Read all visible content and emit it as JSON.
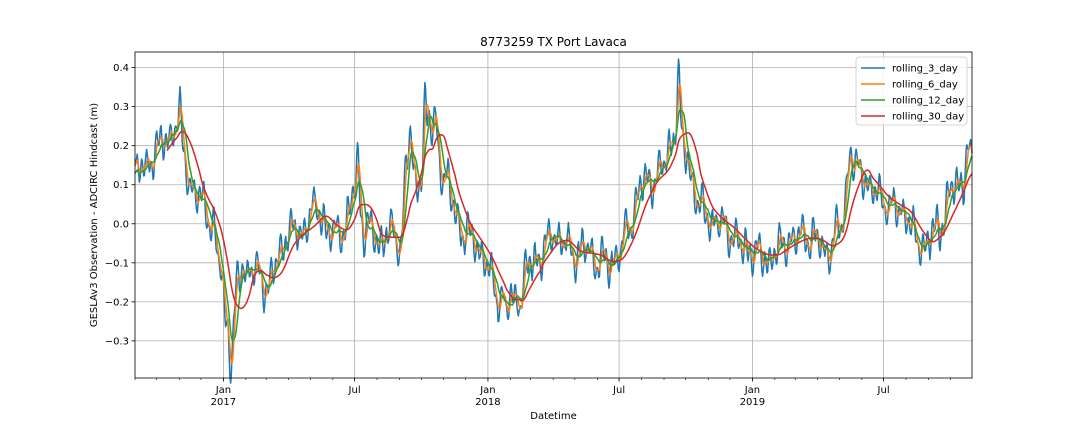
{
  "chart_data": {
    "type": "line",
    "title": "8773259 TX Port Lavaca",
    "xlabel": "Datetime",
    "ylabel": "GESLAv3 Observation - ADCIRC Hindcast (m)",
    "xlim": [
      "2016-09-01",
      "2019-10-31"
    ],
    "ylim": [
      -0.395,
      0.44
    ],
    "grid": true,
    "legend_position": "upper right",
    "x_ticks": [
      {
        "date": "2017-01-01",
        "label": "Jan",
        "sublabel": "2017"
      },
      {
        "date": "2017-07-01",
        "label": "Jul",
        "sublabel": ""
      },
      {
        "date": "2018-01-01",
        "label": "Jan",
        "sublabel": "2018"
      },
      {
        "date": "2018-07-01",
        "label": "Jul",
        "sublabel": ""
      },
      {
        "date": "2019-01-01",
        "label": "Jan",
        "sublabel": "2019"
      },
      {
        "date": "2019-07-01",
        "label": "Jul",
        "sublabel": ""
      }
    ],
    "y_ticks": [
      -0.3,
      -0.2,
      -0.1,
      0.0,
      0.1,
      0.2,
      0.3,
      0.4
    ],
    "y_tick_labels": [
      "−0.3",
      "−0.2",
      "−0.1",
      "0.0",
      "0.1",
      "0.2",
      "0.3",
      "0.4"
    ],
    "anchors": [
      [
        "2016-09-01",
        0.11
      ],
      [
        "2016-09-15",
        0.15
      ],
      [
        "2016-10-01",
        0.19
      ],
      [
        "2016-10-15",
        0.22
      ],
      [
        "2016-10-25",
        0.25
      ],
      [
        "2016-11-05",
        0.2
      ],
      [
        "2016-11-15",
        0.1
      ],
      [
        "2016-11-25",
        0.06
      ],
      [
        "2016-12-05",
        0.05
      ],
      [
        "2016-12-15",
        0.0
      ],
      [
        "2016-12-25",
        -0.1
      ],
      [
        "2017-01-05",
        -0.25
      ],
      [
        "2017-01-12",
        -0.28
      ],
      [
        "2017-01-20",
        -0.15
      ],
      [
        "2017-02-01",
        -0.08
      ],
      [
        "2017-02-15",
        -0.13
      ],
      [
        "2017-03-01",
        -0.16
      ],
      [
        "2017-03-15",
        -0.1
      ],
      [
        "2017-04-01",
        -0.01
      ],
      [
        "2017-04-15",
        -0.04
      ],
      [
        "2017-05-01",
        0.03
      ],
      [
        "2017-05-15",
        0.02
      ],
      [
        "2017-06-01",
        -0.03
      ],
      [
        "2017-06-15",
        -0.01
      ],
      [
        "2017-07-01",
        0.08
      ],
      [
        "2017-07-15",
        -0.01
      ],
      [
        "2017-08-01",
        -0.05
      ],
      [
        "2017-08-15",
        -0.02
      ],
      [
        "2017-09-01",
        -0.05
      ],
      [
        "2017-09-10",
        0.18
      ],
      [
        "2017-09-20",
        0.1
      ],
      [
        "2017-10-01",
        0.14
      ],
      [
        "2017-10-10",
        0.26
      ],
      [
        "2017-10-20",
        0.2
      ],
      [
        "2017-11-01",
        0.12
      ],
      [
        "2017-11-15",
        0.03
      ],
      [
        "2017-12-01",
        -0.03
      ],
      [
        "2017-12-15",
        -0.05
      ],
      [
        "2018-01-01",
        -0.12
      ],
      [
        "2018-01-15",
        -0.18
      ],
      [
        "2018-02-01",
        -0.2
      ],
      [
        "2018-02-15",
        -0.15
      ],
      [
        "2018-03-01",
        -0.1
      ],
      [
        "2018-03-15",
        -0.08
      ],
      [
        "2018-04-01",
        -0.02
      ],
      [
        "2018-04-15",
        -0.06
      ],
      [
        "2018-05-01",
        -0.08
      ],
      [
        "2018-05-15",
        -0.07
      ],
      [
        "2018-06-01",
        -0.09
      ],
      [
        "2018-06-15",
        -0.11
      ],
      [
        "2018-07-01",
        -0.07
      ],
      [
        "2018-07-15",
        0.0
      ],
      [
        "2018-08-01",
        0.1
      ],
      [
        "2018-08-15",
        0.12
      ],
      [
        "2018-09-01",
        0.15
      ],
      [
        "2018-09-15",
        0.25
      ],
      [
        "2018-10-01",
        0.18
      ],
      [
        "2018-10-15",
        0.06
      ],
      [
        "2018-11-01",
        0.02
      ],
      [
        "2018-11-15",
        0.0
      ],
      [
        "2018-12-01",
        -0.02
      ],
      [
        "2018-12-15",
        -0.06
      ],
      [
        "2019-01-01",
        -0.07
      ],
      [
        "2019-01-15",
        -0.09
      ],
      [
        "2019-02-01",
        -0.07
      ],
      [
        "2019-02-15",
        -0.05
      ],
      [
        "2019-03-01",
        -0.04
      ],
      [
        "2019-03-15",
        -0.03
      ],
      [
        "2019-04-01",
        -0.05
      ],
      [
        "2019-04-15",
        -0.07
      ],
      [
        "2019-05-01",
        -0.01
      ],
      [
        "2019-05-15",
        0.14
      ],
      [
        "2019-06-01",
        0.13
      ],
      [
        "2019-06-15",
        0.08
      ],
      [
        "2019-07-01",
        0.06
      ],
      [
        "2019-07-15",
        0.04
      ],
      [
        "2019-08-01",
        0.03
      ],
      [
        "2019-08-15",
        -0.06
      ],
      [
        "2019-09-01",
        -0.04
      ],
      [
        "2019-09-15",
        -0.01
      ],
      [
        "2019-10-01",
        0.08
      ],
      [
        "2019-10-31",
        0.16
      ]
    ],
    "spikes": [
      [
        "2016-11-01",
        0.08
      ],
      [
        "2017-01-10",
        -0.09
      ],
      [
        "2017-02-01",
        -0.06
      ],
      [
        "2017-07-05",
        0.1
      ],
      [
        "2017-09-15",
        0.1
      ],
      [
        "2017-10-05",
        0.13
      ],
      [
        "2017-10-20",
        0.08
      ],
      [
        "2018-01-25",
        -0.05
      ],
      [
        "2018-02-15",
        -0.07
      ],
      [
        "2018-09-20",
        0.16
      ],
      [
        "2019-05-15",
        0.06
      ],
      [
        "2019-10-25",
        0.05
      ]
    ],
    "series": [
      {
        "name": "rolling_3_day",
        "color": "#1f77b4",
        "window_days": 3,
        "amplitude": 1.0
      },
      {
        "name": "rolling_6_day",
        "color": "#ff7f0e",
        "window_days": 6,
        "amplitude": 0.85
      },
      {
        "name": "rolling_12_day",
        "color": "#2ca02c",
        "window_days": 12,
        "amplitude": 0.6
      },
      {
        "name": "rolling_30_day",
        "color": "#d62728",
        "window_days": 30,
        "amplitude": 0.3,
        "start": "2016-10-15"
      }
    ]
  }
}
